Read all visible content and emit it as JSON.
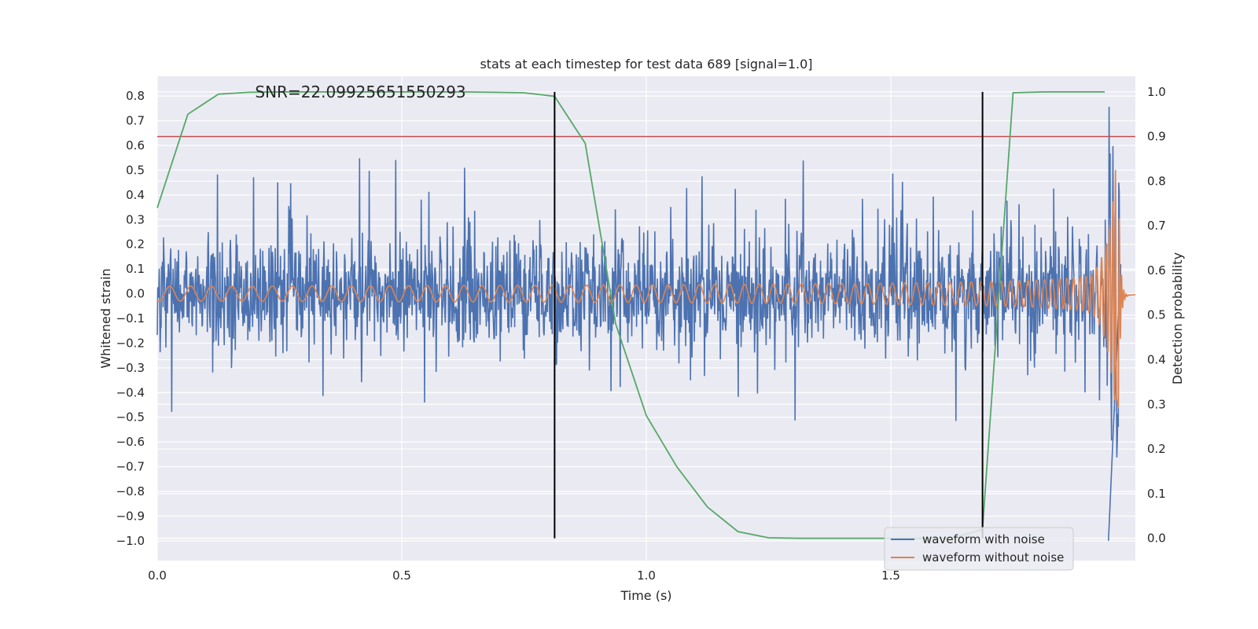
{
  "chart_data": {
    "type": "line",
    "title": "stats at each timestep for test data 689 [signal=1.0]",
    "annotation": "SNR=22.09925651550293",
    "xlabel": "Time (s)",
    "ylabel_left": "Whitened strain",
    "ylabel_right": "Detection probability",
    "xlim": [
      0.0,
      2.0
    ],
    "ylim_left": [
      -1.08,
      0.88
    ],
    "ylim_right": [
      -0.05,
      1.035
    ],
    "xticks": [
      0.0,
      0.5,
      1.0,
      1.5
    ],
    "xtick_labels": [
      "0.0",
      "0.5",
      "1.0",
      "1.5"
    ],
    "yticks_left": [
      0.8,
      0.7,
      0.6,
      0.5,
      0.4,
      0.3,
      0.2,
      0.1,
      0.0,
      -0.1,
      -0.2,
      -0.3,
      -0.4,
      -0.5,
      -0.6,
      -0.7,
      -0.8,
      -0.9,
      -1.0
    ],
    "ytick_labels_left": [
      "0.8",
      "0.7",
      "0.6",
      "0.5",
      "0.4",
      "0.3",
      "0.2",
      "0.1",
      "0.0",
      "−0.1",
      "−0.2",
      "−0.3",
      "−0.4",
      "−0.5",
      "−0.6",
      "−0.7",
      "−0.8",
      "−0.9",
      "−1.0"
    ],
    "yticks_right": [
      1.0,
      0.9,
      0.8,
      0.7,
      0.6,
      0.5,
      0.4,
      0.3,
      0.2,
      0.1,
      0.0
    ],
    "ytick_labels_right": [
      "1.0",
      "0.9",
      "0.8",
      "0.7",
      "0.6",
      "0.5",
      "0.4",
      "0.3",
      "0.2",
      "0.1",
      "0.0"
    ],
    "grid": true,
    "legend_position": "lower-right",
    "series": [
      {
        "name": "waveform with noise",
        "axis": "left",
        "color": "#4c72b0",
        "note": "noisy strain, approx. ±0.25 typical amplitude with spikes to ±0.5, min -1.0 near 1.97s",
        "x_range": [
          0.0,
          1.97
        ]
      },
      {
        "name": "waveform without noise",
        "axis": "left",
        "color": "#dd8452",
        "note": "chirp waveform growing in amplitude and frequency, peak near 1.96s",
        "x_range": [
          0.0,
          2.0
        ]
      },
      {
        "axis": "right",
        "color": "#55a868",
        "x": [
          0.0,
          0.0625,
          0.125,
          0.1875,
          0.25,
          0.3125,
          0.375,
          0.4375,
          0.5,
          0.5625,
          0.625,
          0.6875,
          0.75,
          0.8125,
          0.875,
          0.9375,
          1.0,
          1.0625,
          1.125,
          1.1875,
          1.25,
          1.3125,
          1.375,
          1.4375,
          1.5,
          1.5625,
          1.625,
          1.6875,
          1.75,
          1.8125,
          1.875,
          1.9375
        ],
        "values": [
          0.74,
          0.95,
          0.995,
          0.999,
          1.0,
          1.0,
          1.0,
          1.0,
          1.0,
          1.0,
          1.0,
          0.999,
          0.998,
          0.99,
          0.885,
          0.48,
          0.275,
          0.16,
          0.07,
          0.015,
          0.001,
          0.0,
          0.0,
          0.0,
          0.0,
          0.0,
          0.0,
          0.02,
          0.998,
          1.0,
          1.0,
          1.0
        ]
      }
    ],
    "threshold_line": {
      "axis": "right",
      "value": 0.9,
      "color": "#c44e52"
    },
    "vertical_markers": {
      "x": [
        0.8125,
        1.6875
      ],
      "y_from": 0.0,
      "y_to": 1.0,
      "axis": "right",
      "color": "#000000"
    },
    "colors": {
      "plot_bg": "#eaeaf2",
      "grid": "#ffffff"
    }
  }
}
